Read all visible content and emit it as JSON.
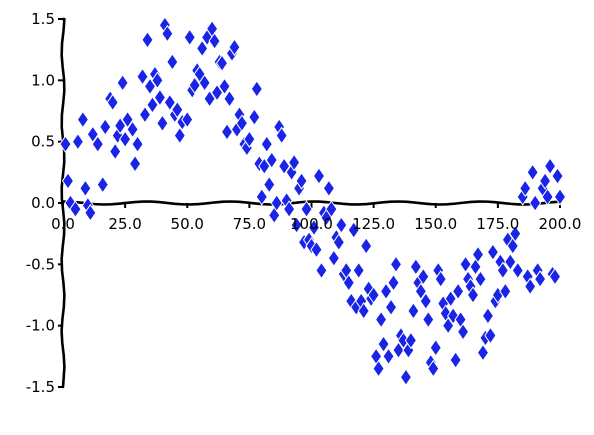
{
  "chart_data": {
    "type": "scatter",
    "title": "",
    "xlabel": "",
    "ylabel": "",
    "xlim": [
      0,
      200
    ],
    "ylim": [
      -1.5,
      1.5
    ],
    "x_ticks": [
      "0.0",
      "25.0",
      "50.0",
      "75.0",
      "100.0",
      "125.0",
      "150.0",
      "175.0",
      "200.0"
    ],
    "y_ticks": [
      "1.5",
      "1.0",
      "0.5",
      "0.0",
      "-0.5",
      "-1.0",
      "-1.5"
    ],
    "marker": "diamond",
    "color": "#1a24e6",
    "grid": false,
    "legend": "none",
    "series": [
      {
        "points": [
          [
            1,
            0.48
          ],
          [
            2,
            0.18
          ],
          [
            3,
            0.0
          ],
          [
            5,
            -0.05
          ],
          [
            6,
            0.5
          ],
          [
            8,
            0.68
          ],
          [
            9,
            0.12
          ],
          [
            10,
            -0.02
          ],
          [
            11,
            -0.08
          ],
          [
            12,
            0.56
          ],
          [
            14,
            0.48
          ],
          [
            16,
            0.15
          ],
          [
            17,
            0.62
          ],
          [
            19,
            0.85
          ],
          [
            20,
            0.82
          ],
          [
            21,
            0.42
          ],
          [
            22,
            0.55
          ],
          [
            23,
            0.63
          ],
          [
            24,
            0.98
          ],
          [
            25,
            0.52
          ],
          [
            26,
            0.68
          ],
          [
            28,
            0.6
          ],
          [
            29,
            0.32
          ],
          [
            30,
            0.48
          ],
          [
            32,
            1.03
          ],
          [
            33,
            0.72
          ],
          [
            34,
            1.33
          ],
          [
            35,
            0.95
          ],
          [
            36,
            0.8
          ],
          [
            37,
            1.05
          ],
          [
            38,
            1.0
          ],
          [
            39,
            0.86
          ],
          [
            40,
            0.65
          ],
          [
            41,
            1.45
          ],
          [
            42,
            1.38
          ],
          [
            43,
            0.82
          ],
          [
            44,
            1.15
          ],
          [
            45,
            0.72
          ],
          [
            46,
            0.76
          ],
          [
            47,
            0.55
          ],
          [
            48,
            0.66
          ],
          [
            50,
            0.68
          ],
          [
            51,
            1.35
          ],
          [
            52,
            0.92
          ],
          [
            53,
            0.96
          ],
          [
            54,
            1.08
          ],
          [
            55,
            1.05
          ],
          [
            56,
            1.26
          ],
          [
            57,
            0.98
          ],
          [
            58,
            1.35
          ],
          [
            59,
            0.85
          ],
          [
            60,
            1.42
          ],
          [
            61,
            1.32
          ],
          [
            62,
            0.9
          ],
          [
            63,
            1.15
          ],
          [
            64,
            1.14
          ],
          [
            65,
            0.95
          ],
          [
            66,
            0.58
          ],
          [
            67,
            0.85
          ],
          [
            68,
            1.22
          ],
          [
            69,
            1.27
          ],
          [
            70,
            0.6
          ],
          [
            71,
            0.72
          ],
          [
            72,
            0.65
          ],
          [
            73,
            0.48
          ],
          [
            74,
            0.45
          ],
          [
            75,
            0.52
          ],
          [
            77,
            0.7
          ],
          [
            78,
            0.93
          ],
          [
            79,
            0.32
          ],
          [
            80,
            0.05
          ],
          [
            81,
            0.3
          ],
          [
            82,
            0.48
          ],
          [
            83,
            0.15
          ],
          [
            84,
            0.35
          ],
          [
            85,
            -0.1
          ],
          [
            86,
            0.0
          ],
          [
            87,
            0.62
          ],
          [
            88,
            0.55
          ],
          [
            89,
            0.3
          ],
          [
            90,
            0.02
          ],
          [
            91,
            -0.05
          ],
          [
            92,
            0.25
          ],
          [
            93,
            0.33
          ],
          [
            94,
            -0.18
          ],
          [
            95,
            0.12
          ],
          [
            96,
            0.18
          ],
          [
            97,
            -0.32
          ],
          [
            98,
            -0.05
          ],
          [
            99,
            -0.3
          ],
          [
            100,
            -0.35
          ],
          [
            101,
            -0.2
          ],
          [
            102,
            -0.38
          ],
          [
            103,
            0.22
          ],
          [
            104,
            -0.55
          ],
          [
            105,
            -0.08
          ],
          [
            106,
            -0.12
          ],
          [
            107,
            0.12
          ],
          [
            108,
            -0.05
          ],
          [
            109,
            -0.45
          ],
          [
            110,
            -0.28
          ],
          [
            111,
            -0.32
          ],
          [
            112,
            -0.18
          ],
          [
            113,
            -0.58
          ],
          [
            114,
            -0.55
          ],
          [
            115,
            -0.65
          ],
          [
            116,
            -0.8
          ],
          [
            117,
            -0.22
          ],
          [
            118,
            -0.85
          ],
          [
            119,
            -0.55
          ],
          [
            120,
            -0.8
          ],
          [
            121,
            -0.88
          ],
          [
            122,
            -0.35
          ],
          [
            123,
            -0.7
          ],
          [
            124,
            -0.78
          ],
          [
            125,
            -0.75
          ],
          [
            126,
            -1.25
          ],
          [
            127,
            -1.35
          ],
          [
            128,
            -0.95
          ],
          [
            129,
            -1.15
          ],
          [
            130,
            -0.72
          ],
          [
            131,
            -1.25
          ],
          [
            132,
            -0.85
          ],
          [
            133,
            -0.65
          ],
          [
            134,
            -0.5
          ],
          [
            135,
            -1.2
          ],
          [
            136,
            -1.08
          ],
          [
            137,
            -1.12
          ],
          [
            138,
            -1.42
          ],
          [
            139,
            -1.2
          ],
          [
            140,
            -1.12
          ],
          [
            141,
            -0.88
          ],
          [
            142,
            -0.52
          ],
          [
            143,
            -0.65
          ],
          [
            144,
            -0.72
          ],
          [
            145,
            -0.6
          ],
          [
            146,
            -0.8
          ],
          [
            147,
            -0.95
          ],
          [
            148,
            -1.3
          ],
          [
            149,
            -1.35
          ],
          [
            150,
            -1.18
          ],
          [
            151,
            -0.55
          ],
          [
            152,
            -0.62
          ],
          [
            153,
            -0.82
          ],
          [
            154,
            -0.9
          ],
          [
            155,
            -1.0
          ],
          [
            156,
            -0.78
          ],
          [
            157,
            -0.92
          ],
          [
            158,
            -1.28
          ],
          [
            159,
            -0.72
          ],
          [
            160,
            -0.95
          ],
          [
            161,
            -1.05
          ],
          [
            162,
            -0.5
          ],
          [
            163,
            -0.62
          ],
          [
            164,
            -0.68
          ],
          [
            165,
            -0.75
          ],
          [
            166,
            -0.52
          ],
          [
            167,
            -0.42
          ],
          [
            168,
            -0.62
          ],
          [
            169,
            -1.22
          ],
          [
            170,
            -1.1
          ],
          [
            171,
            -0.92
          ],
          [
            172,
            -1.08
          ],
          [
            173,
            -0.4
          ],
          [
            174,
            -0.8
          ],
          [
            175,
            -0.75
          ],
          [
            176,
            -0.48
          ],
          [
            177,
            -0.55
          ],
          [
            178,
            -0.72
          ],
          [
            179,
            -0.3
          ],
          [
            180,
            -0.48
          ],
          [
            181,
            -0.35
          ],
          [
            182,
            -0.25
          ],
          [
            183,
            -0.55
          ],
          [
            185,
            0.05
          ],
          [
            186,
            0.12
          ],
          [
            187,
            -0.6
          ],
          [
            188,
            -0.68
          ],
          [
            189,
            0.25
          ],
          [
            190,
            0.0
          ],
          [
            191,
            -0.55
          ],
          [
            192,
            -0.62
          ],
          [
            193,
            0.12
          ],
          [
            194,
            0.18
          ],
          [
            195,
            0.05
          ],
          [
            196,
            0.3
          ],
          [
            197,
            -0.58
          ],
          [
            198,
            -0.6
          ],
          [
            199,
            0.22
          ],
          [
            200,
            0.05
          ]
        ]
      }
    ]
  }
}
